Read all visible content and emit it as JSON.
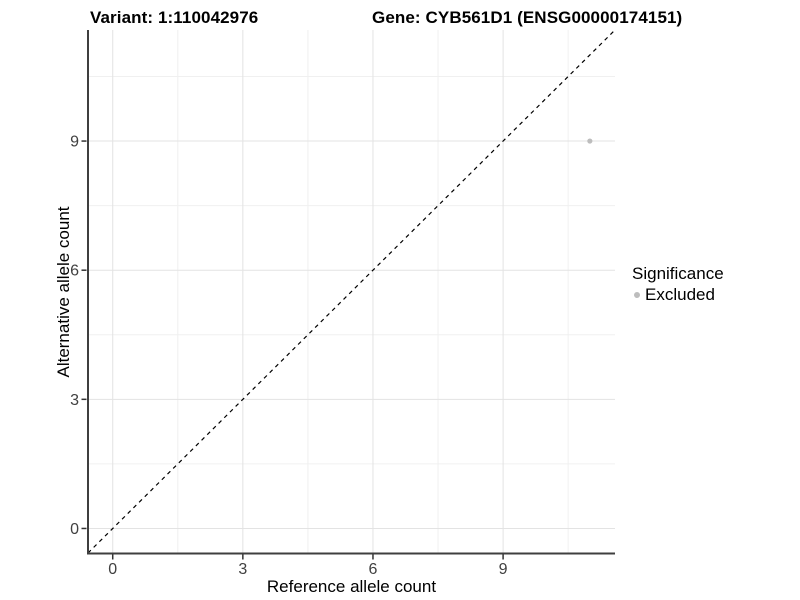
{
  "header": {
    "variant_title": "Variant: 1:110042976",
    "gene_title": "Gene: CYB561D1 (ENSG00000174151)"
  },
  "legend": {
    "title": "Significance",
    "position": "right",
    "items": [
      {
        "label": "Excluded",
        "color": "#bdbdbd",
        "marker": "circle"
      }
    ]
  },
  "chart_data": {
    "type": "scatter",
    "xlabel": "Reference allele count",
    "ylabel": "Alternative allele count",
    "xlim": [
      -0.57,
      11.58
    ],
    "ylim": [
      -0.57,
      11.58
    ],
    "x_ticks": [
      0,
      3,
      6,
      9
    ],
    "y_ticks": [
      0,
      3,
      6,
      9
    ],
    "x_minor_ticks": [
      1.5,
      4.5,
      7.5,
      10.5
    ],
    "y_minor_ticks": [
      1.5,
      4.5,
      7.5,
      10.5
    ],
    "grid": true,
    "legend_position": "right",
    "series": [
      {
        "name": "Excluded",
        "color": "#bdbdbd",
        "points": [
          {
            "x": 11,
            "y": 9
          }
        ]
      }
    ],
    "reference_line": {
      "kind": "identity",
      "slope": 1,
      "intercept": 0,
      "style": "dashed",
      "color": "#000000"
    }
  },
  "colors": {
    "background": "#ffffff",
    "gridline_major": "#e3e3e3",
    "gridline_minor": "#f0f0f0",
    "axis_line": "#3f3f3f",
    "tick_mark": "#333333",
    "tick_label": "#404040",
    "point": "#bdbdbd"
  }
}
